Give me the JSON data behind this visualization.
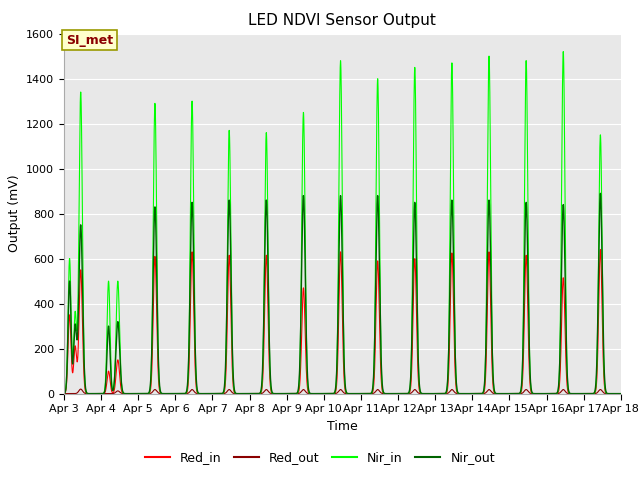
{
  "title": "LED NDVI Sensor Output",
  "xlabel": "Time",
  "ylabel": "Output (mV)",
  "ylim": [
    0,
    1600
  ],
  "yticks": [
    0,
    200,
    400,
    600,
    800,
    1000,
    1200,
    1400,
    1600
  ],
  "x_labels": [
    "Apr 3",
    "Apr 4",
    "Apr 5",
    "Apr 6",
    "Apr 7",
    "Apr 8",
    "Apr 9",
    "Apr 10",
    "Apr 11",
    "Apr 12",
    "Apr 13",
    "Apr 14",
    "Apr 15",
    "Apr 16",
    "Apr 17",
    "Apr 18"
  ],
  "legend_labels": [
    "Red_in",
    "Red_out",
    "Nir_in",
    "Nir_out"
  ],
  "legend_colors": [
    "#ff0000",
    "#8b0000",
    "#00ff00",
    "#006400"
  ],
  "line_colors": {
    "red_in": "#ff0000",
    "red_out": "#8b0000",
    "nir_in": "#00ff00",
    "nir_out": "#006400"
  },
  "annotation_text": "SI_met",
  "background_color": "#e8e8e8",
  "fig_background": "#ffffff",
  "title_fontsize": 11,
  "axis_label_fontsize": 9,
  "tick_fontsize": 8,
  "legend_fontsize": 9,
  "red_in_peaks": [
    550,
    150,
    610,
    630,
    615,
    615,
    470,
    630,
    590,
    600,
    625,
    630,
    615,
    515,
    640
  ],
  "red_out_peaks": [
    20,
    12,
    18,
    18,
    18,
    18,
    18,
    18,
    18,
    18,
    18,
    18,
    18,
    18,
    18
  ],
  "nir_in_peaks": [
    1340,
    500,
    1290,
    1300,
    1170,
    1160,
    1250,
    1480,
    1400,
    1450,
    1470,
    1500,
    1480,
    1520,
    1150
  ],
  "nir_out_peaks": [
    750,
    320,
    830,
    850,
    860,
    860,
    880,
    880,
    880,
    850,
    860,
    860,
    850,
    840,
    890
  ]
}
